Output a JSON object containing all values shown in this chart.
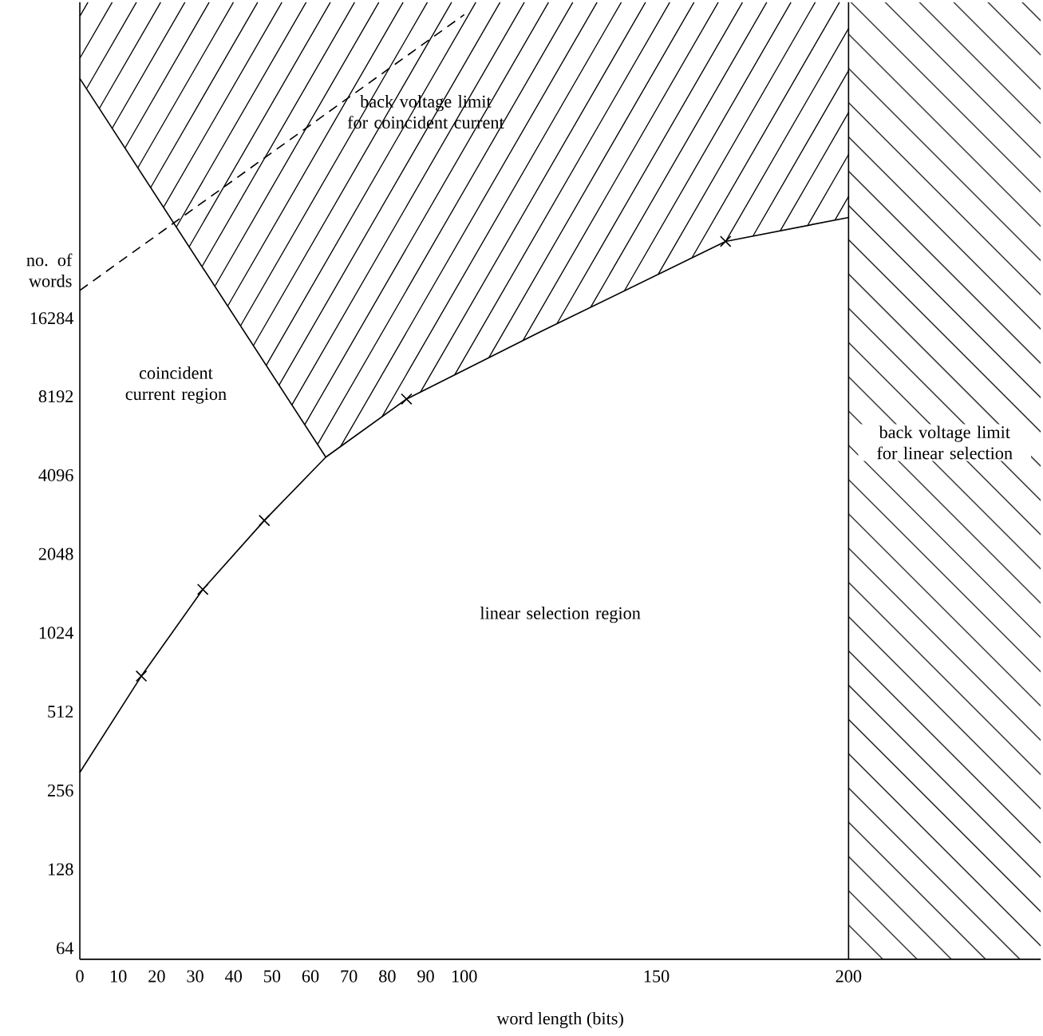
{
  "chart_data": {
    "type": "line",
    "xlabel": "word length (bits)",
    "ylabel": "no. of words",
    "log": "y",
    "xlim": [
      0,
      250
    ],
    "ylim": [
      58,
      262144
    ],
    "xticks": [
      0,
      10,
      20,
      30,
      40,
      50,
      60,
      70,
      80,
      90,
      100,
      150,
      200
    ],
    "yticks": [
      64,
      128,
      256,
      512,
      1024,
      2048,
      4096,
      8192,
      16284
    ],
    "series": [
      {
        "color": "#000000",
        "x": [
          0,
          16,
          32,
          48,
          64,
          85,
          120,
          168,
          200
        ],
        "values": [
          300,
          700,
          1500,
          2750,
          4800,
          8000,
          14500,
          32000,
          39500
        ]
      },
      {
        "type": "scatter",
        "color": "#000000",
        "marker": "cross",
        "x": [
          16,
          32,
          48,
          85,
          168
        ],
        "values": [
          700,
          1500,
          2750,
          8000,
          32000
        ]
      },
      {
        "color": "#000000",
        "x": [
          0,
          64
        ],
        "values": [
          134000,
          4800
        ]
      },
      {
        "color": "#000000",
        "line_style": "dashed",
        "x": [
          0,
          100
        ],
        "values": [
          20800,
          235000
        ]
      }
    ],
    "bands": [
      {
        "axis": "x",
        "from": 200,
        "to": 250,
        "label": "back voltage limit for linear selection",
        "color": "#000000"
      }
    ],
    "annotations": [
      "coincident current region",
      "linear selection region",
      {
        "text": "back voltage limit for coincident current",
        "x": 58,
        "y": 85000
      }
    ]
  }
}
